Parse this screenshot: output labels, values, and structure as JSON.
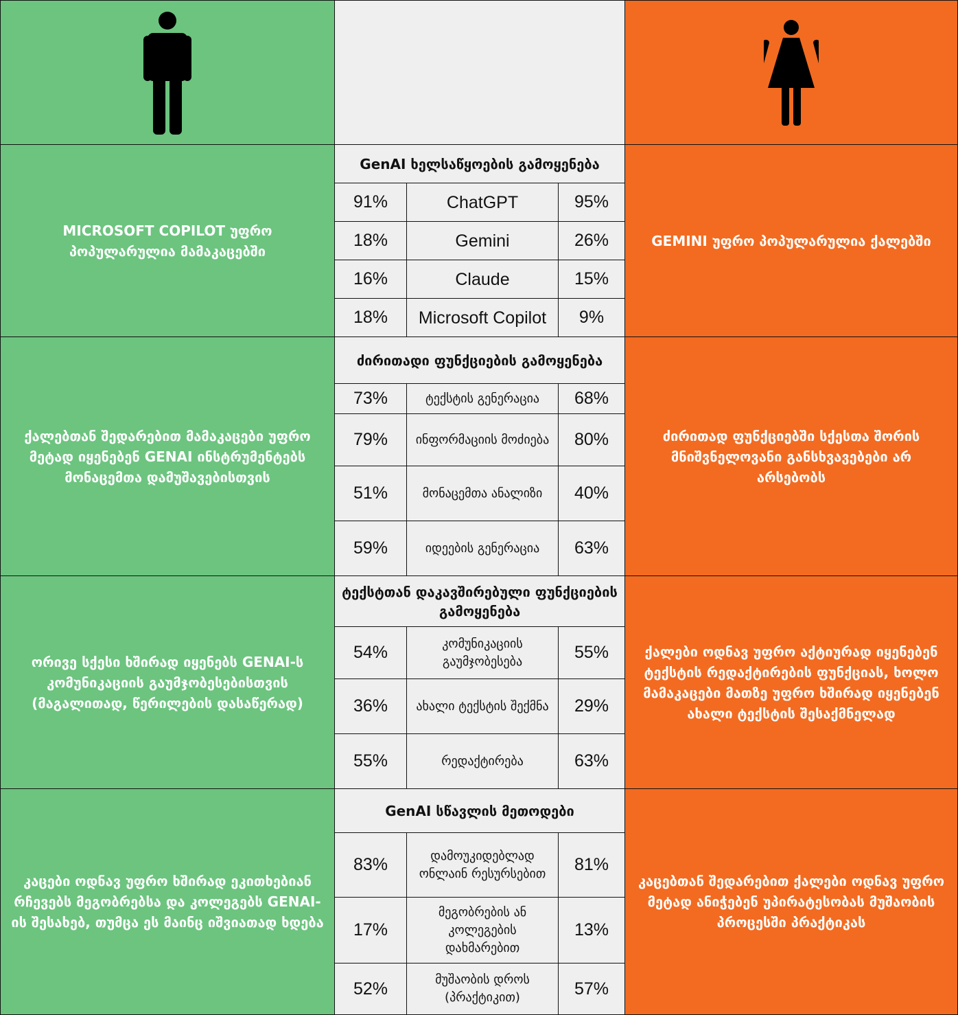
{
  "sections": [
    {
      "title": "GenAI ხელსაწყოების გამოყენება",
      "left": "MICROSOFT COPILOT უფრო პოპულარულია მამაკაცებში",
      "right": "GEMINI უფრო პოპულარულია ქალებში",
      "rows": [
        [
          "91%",
          "ChatGPT",
          "95%"
        ],
        [
          "18%",
          "Gemini",
          "26%"
        ],
        [
          "16%",
          "Claude",
          "15%"
        ],
        [
          "18%",
          "Microsoft Copilot",
          "9%"
        ]
      ]
    },
    {
      "title": "ძირითადი ფუნქციების გამოყენება",
      "left": "ქალებთან შედარებით მამაკაცები უფრო მეტად იყენებენ GENAI ინსტრუმენტებს მონაცემთა დამუშავებისთვის",
      "right": "ძირითად ფუნქციებში სქესთა შორის მნიშვნელოვანი განსხვავებები არ არსებობს",
      "rows": [
        [
          "73%",
          "ტექსტის გენერაცია",
          "68%"
        ],
        [
          "79%",
          "ინფორმაციის მოძიება",
          "80%"
        ],
        [
          "51%",
          "მონაცემთა ანალიზი",
          "40%"
        ],
        [
          "59%",
          "იდეების გენერაცია",
          "63%"
        ]
      ]
    },
    {
      "title": "ტექსტთან დაკავშირებული ფუნქციების გამოყენება",
      "left": "ორივე სქესი ხშირად იყენებს GENAI-ს კომუნიკაციის გაუმჯობესებისთვის (მაგალითად, წერილების დასაწერად)",
      "right": "ქალები ოდნავ უფრო აქტიურად იყენებენ ტექსტის რედაქტირების ფუნქციას, ხოლო მამაკაცები მათზე უფრო ხშირად იყენებენ ახალი ტექსტის შესაქმნელად",
      "rows": [
        [
          "54%",
          "კომუნიკაციის გაუმჯობესება",
          "55%"
        ],
        [
          "36%",
          "ახალი ტექსტის შექმნა",
          "29%"
        ],
        [
          "55%",
          "რედაქტირება",
          "63%"
        ]
      ]
    },
    {
      "title": "GenAI სწავლის მეთოდები",
      "left": "კაცები ოდნავ უფრო ხშირად ეკითხებიან რჩევებს მეგობრებსა და კოლეგებს GENAI-ის შესახებ, თუმცა ეს მაინც იშვიათად ხდება",
      "right": "კაცებთან შედარებით ქალები ოდნავ უფრო მეტად ანიჭებენ უპირატესობას მუშაობის პროცესში პრაქტიკას",
      "rows": [
        [
          "83%",
          "დამოუკიდებლად ონლაინ რესურსებით",
          "81%"
        ],
        [
          "17%",
          "მეგობრების ან კოლეგების დახმარებით",
          "13%"
        ],
        [
          "52%",
          "მუშაობის დროს (პრაქტიკით)",
          "57%"
        ]
      ]
    }
  ]
}
